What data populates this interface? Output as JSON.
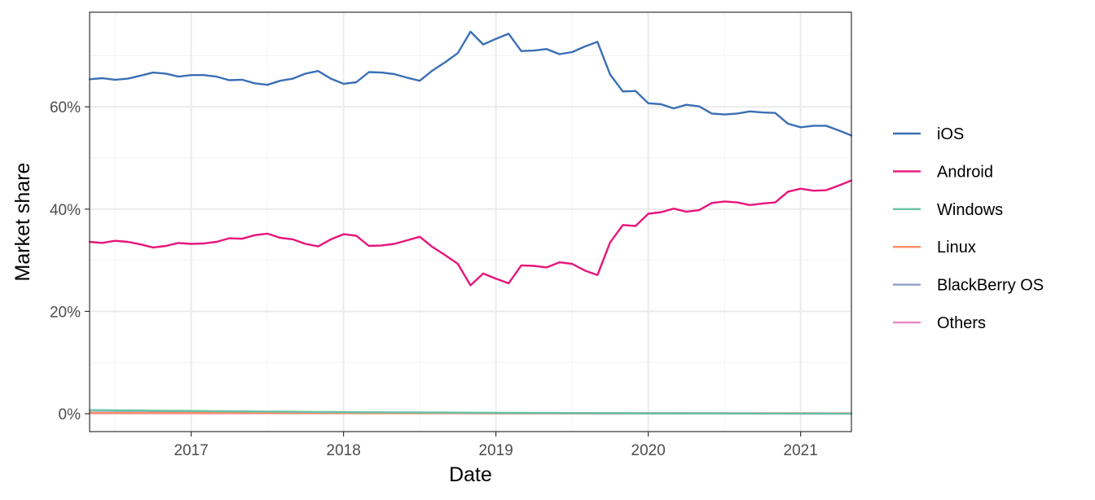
{
  "chart_data": {
    "type": "line",
    "xlabel": "Date",
    "ylabel": "Market share",
    "x_ticks": [
      "2017",
      "2018",
      "2019",
      "2020",
      "2021"
    ],
    "y_ticks": [
      "0%",
      "20%",
      "40%",
      "60%"
    ],
    "xlim": [
      "2016-05",
      "2021-05"
    ],
    "ylim": [
      -3.5,
      78.5
    ],
    "grid": true,
    "legend_position": "right",
    "dates": [
      "2016-05",
      "2016-06",
      "2016-07",
      "2016-08",
      "2016-09",
      "2016-10",
      "2016-11",
      "2016-12",
      "2017-01",
      "2017-02",
      "2017-03",
      "2017-04",
      "2017-05",
      "2017-06",
      "2017-07",
      "2017-08",
      "2017-09",
      "2017-10",
      "2017-11",
      "2017-12",
      "2018-01",
      "2018-02",
      "2018-03",
      "2018-04",
      "2018-05",
      "2018-06",
      "2018-07",
      "2018-08",
      "2018-09",
      "2018-10",
      "2018-11",
      "2018-12",
      "2019-01",
      "2019-02",
      "2019-03",
      "2019-04",
      "2019-05",
      "2019-06",
      "2019-07",
      "2019-08",
      "2019-09",
      "2019-10",
      "2019-11",
      "2019-12",
      "2020-01",
      "2020-02",
      "2020-03",
      "2020-04",
      "2020-05",
      "2020-06",
      "2020-07",
      "2020-08",
      "2020-09",
      "2020-10",
      "2020-11",
      "2020-12",
      "2021-01",
      "2021-02",
      "2021-03",
      "2021-04",
      "2021-05"
    ],
    "series": [
      {
        "name": "iOS",
        "color": "#3b6fb5",
        "values": [
          65.4,
          65.6,
          65.3,
          65.5,
          66.1,
          66.7,
          66.5,
          65.9,
          66.2,
          66.2,
          65.9,
          65.2,
          65.3,
          64.6,
          64.3,
          65.1,
          65.5,
          66.5,
          67.0,
          65.5,
          64.5,
          64.8,
          66.8,
          66.7,
          66.4,
          65.7,
          65.1,
          67.1,
          68.7,
          70.5,
          74.7,
          72.2,
          73.3,
          74.3,
          70.9,
          71.0,
          71.3,
          70.3,
          70.7,
          71.8,
          72.7,
          66.3,
          63.0,
          63.1,
          60.7,
          60.5,
          59.7,
          60.4,
          60.1,
          58.7,
          58.5,
          58.7,
          59.1,
          58.9,
          58.8,
          56.7,
          56.0,
          56.3,
          56.3,
          55.4,
          54.4
        ]
      },
      {
        "name": "Android",
        "color": "#e7157b",
        "values": [
          33.6,
          33.4,
          33.8,
          33.6,
          33.1,
          32.5,
          32.8,
          33.4,
          33.2,
          33.3,
          33.6,
          34.3,
          34.2,
          34.9,
          35.2,
          34.4,
          34.1,
          33.2,
          32.7,
          34.1,
          35.1,
          34.8,
          32.8,
          32.9,
          33.2,
          33.9,
          34.6,
          32.6,
          31.0,
          29.3,
          25.1,
          27.4,
          26.4,
          25.5,
          29.0,
          28.9,
          28.6,
          29.6,
          29.3,
          28.0,
          27.1,
          33.5,
          36.9,
          36.7,
          39.1,
          39.4,
          40.1,
          39.5,
          39.8,
          41.2,
          41.5,
          41.3,
          40.8,
          41.1,
          41.3,
          43.4,
          44.0,
          43.6,
          43.7,
          44.6,
          45.6
        ]
      },
      {
        "name": "Windows",
        "color": "#66c2a5",
        "values": [
          0.7,
          0.68,
          0.66,
          0.64,
          0.62,
          0.6,
          0.58,
          0.56,
          0.54,
          0.52,
          0.5,
          0.48,
          0.46,
          0.44,
          0.42,
          0.4,
          0.38,
          0.36,
          0.34,
          0.32,
          0.3,
          0.29,
          0.28,
          0.27,
          0.26,
          0.25,
          0.24,
          0.23,
          0.22,
          0.21,
          0.2,
          0.19,
          0.18,
          0.17,
          0.16,
          0.15,
          0.14,
          0.13,
          0.12,
          0.11,
          0.1,
          0.1,
          0.09,
          0.09,
          0.08,
          0.08,
          0.07,
          0.07,
          0.06,
          0.06,
          0.05,
          0.05,
          0.05,
          0.04,
          0.04,
          0.04,
          0.03,
          0.03,
          0.03,
          0.02,
          0.02
        ]
      },
      {
        "name": "Linux",
        "color": "#fc8d62",
        "values": [
          0.15,
          0.15,
          0.15,
          0.15,
          0.15,
          0.15,
          0.15,
          0.15,
          0.14,
          0.14,
          0.14,
          0.14,
          0.14,
          0.14,
          0.14,
          0.13,
          0.13,
          0.13,
          0.13,
          0.13,
          0.13,
          0.12,
          0.12,
          0.12,
          0.12,
          0.12,
          0.11,
          0.11,
          0.11,
          0.11,
          0.11,
          0.1,
          0.1,
          0.1,
          0.1,
          0.1,
          0.1,
          0.09,
          0.09,
          0.09,
          0.09,
          0.09,
          0.09,
          0.08,
          0.08,
          0.08,
          0.08,
          0.08,
          0.07,
          0.07,
          0.07,
          0.07,
          0.07,
          0.06,
          0.06,
          0.06,
          0.06,
          0.06,
          0.05,
          0.05,
          0.05
        ]
      },
      {
        "name": "BlackBerry OS",
        "color": "#8da0cb",
        "values": [
          0.25,
          0.25,
          0.24,
          0.24,
          0.23,
          0.23,
          0.22,
          0.22,
          0.21,
          0.21,
          0.2,
          0.2,
          0.19,
          0.19,
          0.18,
          0.18,
          0.17,
          0.17,
          0.16,
          0.16,
          0.15,
          0.15,
          0.14,
          0.14,
          0.13,
          0.13,
          0.12,
          0.12,
          0.11,
          0.11,
          0.1,
          0.1,
          0.09,
          0.09,
          0.08,
          0.08,
          0.07,
          0.07,
          0.06,
          0.06,
          0.05,
          0.05,
          0.05,
          0.04,
          0.04,
          0.04,
          0.04,
          0.03,
          0.03,
          0.03,
          0.03,
          0.02,
          0.02,
          0.02,
          0.02,
          0.02,
          0.01,
          0.01,
          0.01,
          0.01,
          0.01
        ]
      },
      {
        "name": "Others",
        "color": "#e78ac3",
        "values": [
          0.1,
          0.1,
          0.1,
          0.1,
          0.1,
          0.1,
          0.1,
          0.1,
          0.1,
          0.1,
          0.1,
          0.1,
          0.1,
          0.1,
          0.1,
          0.1,
          0.1,
          0.1,
          0.1,
          0.1,
          0.1,
          0.1,
          0.1,
          0.1,
          0.1,
          0.1,
          0.1,
          0.1,
          0.1,
          0.1,
          0.1,
          0.1,
          0.1,
          0.1,
          0.1,
          0.1,
          0.1,
          0.1,
          0.1,
          0.1,
          0.1,
          0.1,
          0.1,
          0.1,
          0.1,
          0.1,
          0.1,
          0.1,
          0.1,
          0.1,
          0.1,
          0.1,
          0.1,
          0.1,
          0.1,
          0.1,
          0.1,
          0.1,
          0.1,
          0.1,
          0.1
        ]
      }
    ]
  }
}
